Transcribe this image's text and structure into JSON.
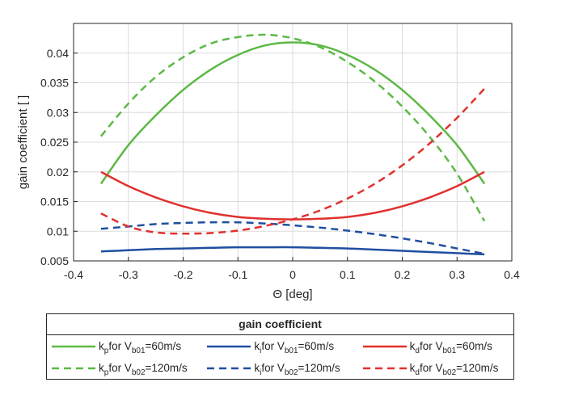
{
  "chart_data": {
    "type": "line",
    "xlabel": "Θ [deg]",
    "ylabel": "gain coefficient [ ]",
    "xlim": [
      -0.4,
      0.4
    ],
    "ylim": [
      0.005,
      0.045
    ],
    "xticks": [
      -0.4,
      -0.3,
      -0.2,
      -0.1,
      0,
      0.1,
      0.2,
      0.3,
      0.4
    ],
    "xtick_labels": [
      "-0.4",
      "-0.3",
      "-0.2",
      "-0.1",
      "0",
      "0.1",
      "0.2",
      "0.3",
      "0.4"
    ],
    "yticks": [
      0.005,
      0.01,
      0.015,
      0.02,
      0.025,
      0.03,
      0.035,
      0.04
    ],
    "ytick_labels": [
      "0.005",
      "0.01",
      "0.015",
      "0.02",
      "0.025",
      "0.03",
      "0.035",
      "0.04"
    ],
    "grid": true,
    "x": [
      -0.35,
      -0.3,
      -0.25,
      -0.2,
      -0.15,
      -0.1,
      -0.05,
      0,
      0.05,
      0.1,
      0.15,
      0.2,
      0.25,
      0.3,
      0.35
    ],
    "series": [
      {
        "name": "kp_v1",
        "color": "#5cb946",
        "dash": "solid",
        "values": [
          0.018,
          0.0245,
          0.0295,
          0.0338,
          0.0372,
          0.0397,
          0.0413,
          0.0418,
          0.0413,
          0.0397,
          0.0372,
          0.0338,
          0.0295,
          0.0245,
          0.018
        ]
      },
      {
        "name": "ki_v1",
        "color": "#1f4fa0",
        "dash": "solid",
        "values": [
          0.0066,
          0.0068,
          0.007,
          0.0071,
          0.0072,
          0.0073,
          0.0073,
          0.0073,
          0.0072,
          0.0071,
          0.0069,
          0.0067,
          0.0065,
          0.0063,
          0.0061
        ]
      },
      {
        "name": "kd_v1",
        "color": "#e0312e",
        "dash": "solid",
        "values": [
          0.02,
          0.0176,
          0.0157,
          0.0142,
          0.0131,
          0.0124,
          0.0121,
          0.012,
          0.0121,
          0.0124,
          0.0131,
          0.0142,
          0.0157,
          0.0176,
          0.02
        ]
      },
      {
        "name": "kp_v2",
        "color": "#5cb946",
        "dash": "dashed",
        "values": [
          0.026,
          0.0315,
          0.036,
          0.0393,
          0.0416,
          0.0427,
          0.0431,
          0.0425,
          0.041,
          0.0385,
          0.0352,
          0.031,
          0.0259,
          0.0197,
          0.0117
        ]
      },
      {
        "name": "ki_v2",
        "color": "#1f4fa0",
        "dash": "dashed",
        "values": [
          0.0104,
          0.0108,
          0.0112,
          0.0114,
          0.0115,
          0.0115,
          0.0113,
          0.011,
          0.0106,
          0.0101,
          0.0095,
          0.0088,
          0.008,
          0.0071,
          0.0062
        ]
      },
      {
        "name": "kd_v2",
        "color": "#e0312e",
        "dash": "dashed",
        "values": [
          0.013,
          0.0108,
          0.0098,
          0.0096,
          0.0097,
          0.0101,
          0.0109,
          0.012,
          0.0135,
          0.0155,
          0.018,
          0.0211,
          0.0248,
          0.0291,
          0.034
        ]
      }
    ]
  },
  "legend": {
    "title": "gain coefficient",
    "entries": [
      {
        "k": "k",
        "sub": "p",
        "mid": " for V",
        "vsub": "b01",
        "tail": "=60m/s",
        "color": "#5cb946",
        "dash": "solid"
      },
      {
        "k": "k",
        "sub": "i",
        "mid": " for V",
        "vsub": "b01",
        "tail": "=60m/s",
        "color": "#1f4fa0",
        "dash": "solid"
      },
      {
        "k": "k",
        "sub": "d",
        "mid": " for V",
        "vsub": "b01",
        "tail": "=60m/s",
        "color": "#e0312e",
        "dash": "solid"
      },
      {
        "k": "k",
        "sub": "p",
        "mid": " for V",
        "vsub": "b02",
        "tail": "=120m/s",
        "color": "#5cb946",
        "dash": "dashed"
      },
      {
        "k": "k",
        "sub": "i",
        "mid": " for V",
        "vsub": "b02",
        "tail": "=120m/s",
        "color": "#1f4fa0",
        "dash": "dashed"
      },
      {
        "k": "k",
        "sub": "d",
        "mid": " for V",
        "vsub": "b02",
        "tail": "=120m/s",
        "color": "#e0312e",
        "dash": "dashed"
      }
    ]
  }
}
